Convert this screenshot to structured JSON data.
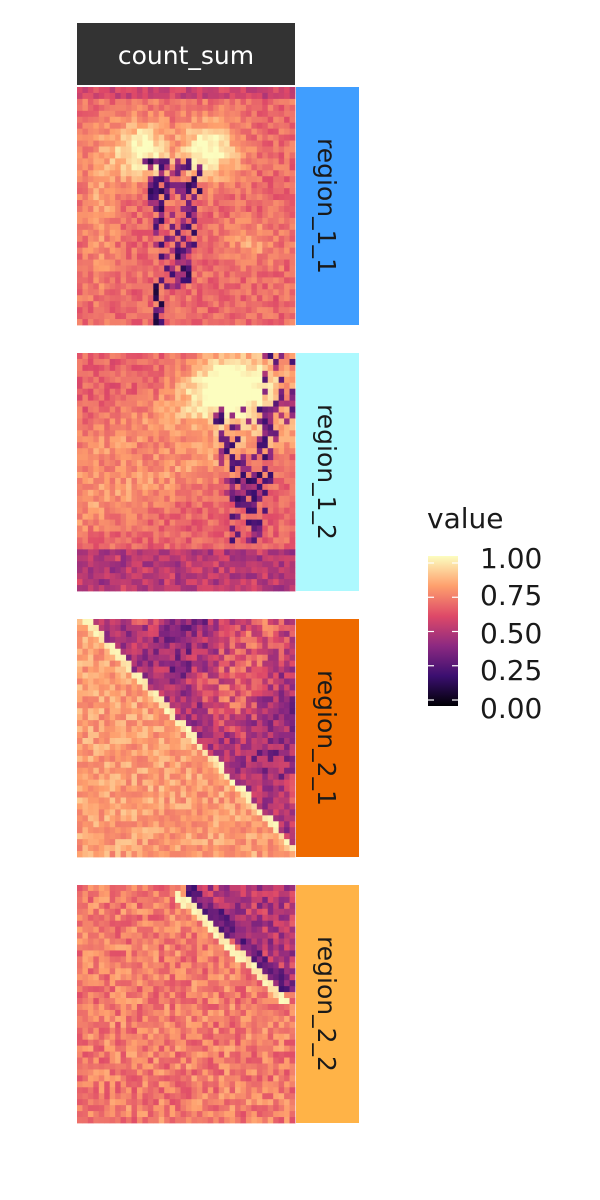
{
  "chart_data": {
    "type": "heatmap",
    "facet_column": "count_sum",
    "facet_rows": [
      {
        "label": "region_1_1",
        "strip_color": "#409EFF",
        "pattern": "nuclei_top_pair"
      },
      {
        "label": "region_1_2",
        "strip_color": "#ADF9FE",
        "pattern": "nucleus_top_right"
      },
      {
        "label": "region_2_1",
        "strip_color": "#EE6A00",
        "pattern": "diagonal_band_upper_right"
      },
      {
        "label": "region_2_2",
        "strip_color": "#FFB347",
        "pattern": "corner_band_upper_right"
      }
    ],
    "grid_size": 40,
    "value_range": [
      0,
      1
    ],
    "colormap": "magma",
    "legend": {
      "title": "value",
      "ticks": [
        1.0,
        0.75,
        0.5,
        0.25,
        0.0
      ],
      "tick_labels": [
        "1.00",
        "0.75",
        "0.50",
        "0.25",
        "0.00"
      ],
      "placement": "right"
    }
  },
  "colors": {
    "column_strip": "#333333",
    "column_strip_text": "#FFFFFF",
    "row_strip_text": "#1A1A1A",
    "magma_stops": [
      "#000004",
      "#3B0F70",
      "#8C2981",
      "#DE4968",
      "#FE9F6D",
      "#FCFDBF"
    ]
  }
}
